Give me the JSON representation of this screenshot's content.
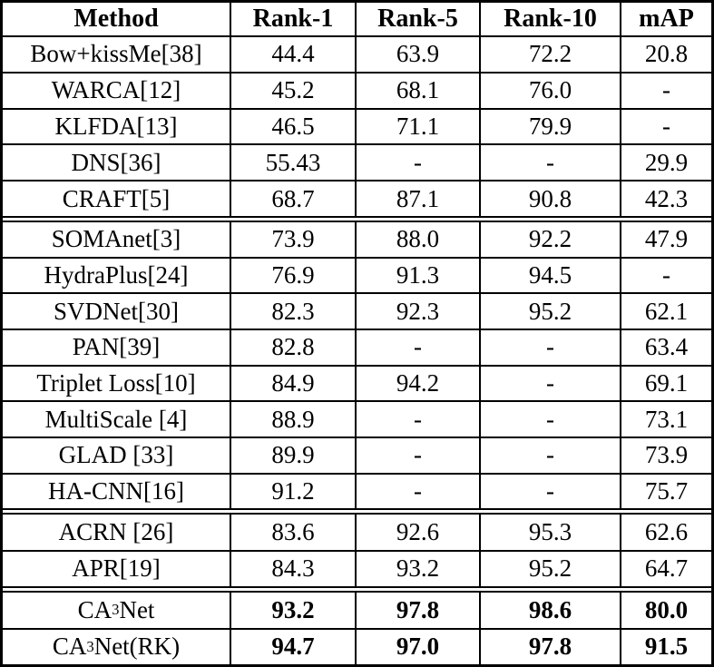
{
  "colors": {
    "border": "#000000",
    "background": "#ffffff",
    "text": "#000000"
  },
  "table": {
    "columns": [
      "Method",
      "Rank-1",
      "Rank-5",
      "Rank-10",
      "mAP"
    ],
    "groups": [
      {
        "rows": [
          {
            "method": "Bow+kissMe[38]",
            "values": [
              "44.4",
              "63.9",
              "72.2",
              "20.8"
            ]
          },
          {
            "method": "WARCA[12]",
            "values": [
              "45.2",
              "68.1",
              "76.0",
              "-"
            ]
          },
          {
            "method": "KLFDA[13]",
            "values": [
              "46.5",
              "71.1",
              "79.9",
              "-"
            ]
          },
          {
            "method": "DNS[36]",
            "values": [
              "55.43",
              "-",
              "-",
              "29.9"
            ]
          },
          {
            "method": "CRAFT[5]",
            "values": [
              "68.7",
              "87.1",
              "90.8",
              "42.3"
            ]
          }
        ]
      },
      {
        "rows": [
          {
            "method": "SOMAnet[3]",
            "values": [
              "73.9",
              "88.0",
              "92.2",
              "47.9"
            ]
          },
          {
            "method": "HydraPlus[24]",
            "values": [
              "76.9",
              "91.3",
              "94.5",
              "-"
            ]
          },
          {
            "method": "SVDNet[30]",
            "values": [
              "82.3",
              "92.3",
              "95.2",
              "62.1"
            ]
          },
          {
            "method": "PAN[39]",
            "values": [
              "82.8",
              "-",
              "-",
              "63.4"
            ]
          },
          {
            "method": "Triplet Loss[10]",
            "values": [
              "84.9",
              "94.2",
              "-",
              "69.1"
            ]
          },
          {
            "method": "MultiScale [4]",
            "values": [
              "88.9",
              "-",
              "-",
              "73.1"
            ]
          },
          {
            "method": "GLAD [33]",
            "values": [
              "89.9",
              "-",
              "-",
              "73.9"
            ]
          },
          {
            "method": "HA-CNN[16]",
            "values": [
              "91.2",
              "-",
              "-",
              "75.7"
            ]
          }
        ]
      },
      {
        "rows": [
          {
            "method": "ACRN [26]",
            "values": [
              "83.6",
              "92.6",
              "95.3",
              "62.6"
            ]
          },
          {
            "method": "APR[19]",
            "values": [
              "84.3",
              "93.2",
              "95.2",
              "64.7"
            ]
          }
        ]
      },
      {
        "rows": [
          {
            "method_pre": "CA",
            "method_sup": "3",
            "method_post": "Net",
            "values": [
              "93.2",
              "97.8",
              "98.6",
              "80.0"
            ]
          },
          {
            "method_pre": "CA",
            "method_sup": "3",
            "method_post": "Net(RK)",
            "values": [
              "94.7",
              "97.0",
              "97.8",
              "91.5"
            ]
          }
        ]
      }
    ]
  }
}
